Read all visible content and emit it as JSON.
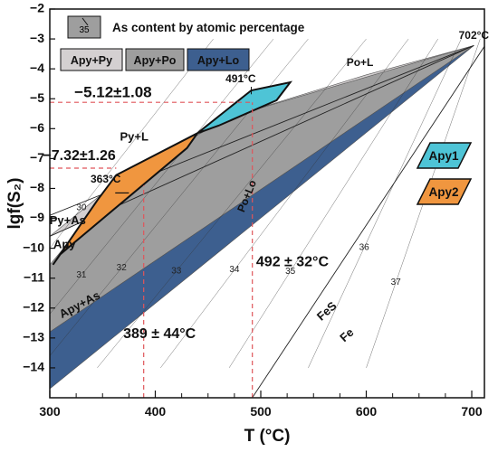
{
  "chart_data": {
    "type": "area",
    "xlabel": "T (°C)",
    "ylabel": "lgf(S₂)",
    "xlim": [
      300,
      712
    ],
    "ylim": [
      -15,
      -2
    ],
    "x_ticks": [
      300,
      400,
      500,
      600,
      700
    ],
    "y_ticks": [
      -2,
      -3,
      -4,
      -5,
      -6,
      -7,
      -8,
      -9,
      -10,
      -11,
      -12,
      -13,
      -14
    ],
    "x_minor_ticks": [
      325,
      350,
      375,
      425,
      450,
      475,
      525,
      550,
      575,
      625,
      650,
      675
    ],
    "phase_fields": [
      {
        "name": "Apy+Py",
        "color": "#d4d0d1",
        "polygon": [
          [
            300,
            -9.6
          ],
          [
            702,
            -3.22
          ],
          [
            600,
            -4.2
          ],
          [
            470,
            -5.62
          ],
          [
            370,
            -7.6
          ],
          [
            300,
            -9.6
          ]
        ]
      },
      {
        "name": "Apy+Po",
        "color": "#9e9e9e",
        "polygon": [
          [
            300,
            -10.55
          ],
          [
            300,
            -12.8
          ],
          [
            702,
            -3.22
          ],
          [
            470,
            -5.62
          ],
          [
            370,
            -7.6
          ],
          [
            300,
            -10.55
          ]
        ]
      },
      {
        "name": "Apy+Lo",
        "color": "#3d5f8f",
        "polygon": [
          [
            300,
            -12.8
          ],
          [
            300,
            -14.7
          ],
          [
            702,
            -3.22
          ]
        ]
      }
    ],
    "reaction_lines": [
      {
        "name": "Py+As / Apy",
        "points": [
          [
            300,
            -9.6
          ],
          [
            702,
            -3.22
          ]
        ]
      },
      {
        "name": "Po+L upper",
        "points": [
          [
            300,
            -8.9
          ],
          [
            702,
            -3.22
          ]
        ]
      },
      {
        "name": "FeS / Fe",
        "points": [
          [
            490,
            -15.1
          ],
          [
            712,
            -3.25
          ]
        ]
      }
    ],
    "isopleths": {
      "lines": [
        {
          "label": "30",
          "points": [
            [
              300,
              -10.0
            ],
            [
              455,
              -3.0
            ]
          ]
        },
        {
          "label": "31",
          "points": [
            [
              300,
              -12.2
            ],
            [
              512,
              -3.0
            ]
          ]
        },
        {
          "label": "32",
          "points": [
            [
              300,
              -13.6
            ],
            [
              545,
              -3.0
            ]
          ]
        },
        {
          "label": "33",
          "points": [
            [
              345,
              -14.0
            ],
            [
              600,
              -3.0
            ]
          ]
        },
        {
          "label": "34",
          "points": [
            [
              405,
              -14.0
            ],
            [
              640,
              -3.0
            ]
          ]
        },
        {
          "label": "35",
          "points": [
            [
              470,
              -14.0
            ],
            [
              668,
              -3.0
            ]
          ]
        },
        {
          "label": "36",
          "points": [
            [
              545,
              -14.0
            ],
            [
              690,
              -3.0
            ]
          ]
        },
        {
          "label": "37",
          "points": [
            [
              600,
              -14.0
            ],
            [
              708,
              -3.0
            ]
          ]
        }
      ]
    },
    "series": [
      {
        "name": "Apy1",
        "color": "#4ec4d6",
        "polygon": [
          [
            440,
            -6.15
          ],
          [
            465,
            -5.45
          ],
          [
            491,
            -4.72
          ],
          [
            528,
            -4.45
          ],
          [
            515,
            -5.05
          ],
          [
            460,
            -5.9
          ],
          [
            440,
            -6.15
          ]
        ]
      },
      {
        "name": "Apy2",
        "color": "#f0963f",
        "polygon": [
          [
            303,
            -10.55
          ],
          [
            345,
            -8.4
          ],
          [
            363,
            -7.55
          ],
          [
            440,
            -6.15
          ],
          [
            430,
            -6.65
          ],
          [
            310,
            -10.2
          ],
          [
            303,
            -10.55
          ]
        ]
      }
    ],
    "reference_lines": [
      {
        "orientation": "horizontal",
        "y": -5.12,
        "x_range": [
          300,
          491
        ],
        "style": "dashed",
        "color": "#e0555a"
      },
      {
        "orientation": "horizontal",
        "y": -7.32,
        "x_range": [
          300,
          363
        ],
        "style": "dashed",
        "color": "#e0555a"
      },
      {
        "orientation": "vertical",
        "x": 389,
        "y_range": [
          -15,
          -7.9
        ],
        "style": "dashed",
        "color": "#e0555a"
      },
      {
        "orientation": "vertical",
        "x": 492,
        "y_range": [
          -15,
          -5.12
        ],
        "style": "dashed",
        "color": "#e0555a"
      }
    ],
    "legend": {
      "placement": "top-left",
      "isopleth_sample": "35",
      "isopleth_text": "As content by atomic percentage",
      "entries": [
        {
          "name": "Apy+Py",
          "color": "#d4d0d1"
        },
        {
          "name": "Apy+Po",
          "color": "#9e9e9e"
        },
        {
          "name": "Apy+Lo",
          "color": "#3d5f8f"
        }
      ]
    },
    "sample_legend": [
      {
        "name": "Apy1",
        "color": "#4ec4d6"
      },
      {
        "name": "Apy2",
        "color": "#f0963f"
      }
    ],
    "annotations": [
      {
        "text": "702°C",
        "x": 702,
        "y": -3.0,
        "size": 12
      },
      {
        "text": "491°C",
        "x": 481,
        "y": -4.45,
        "size": 12
      },
      {
        "text": "363°C",
        "x": 353,
        "y": -7.8,
        "size": 12
      },
      {
        "text": "−5.12±1.08",
        "x": 360,
        "y": -4.95,
        "size": 17
      },
      {
        "text": "−7.32±1.26",
        "x": 328,
        "y": -7.05,
        "size": 16
      },
      {
        "text": "492 ± 32°C",
        "x": 530,
        "y": -10.6,
        "size": 16
      },
      {
        "text": "389 ± 44°C",
        "x": 404,
        "y": -13.0,
        "size": 16
      },
      {
        "text": "Po+L",
        "x": 594,
        "y": -3.9,
        "size": 12
      },
      {
        "text": "Py+L",
        "x": 380,
        "y": -6.4,
        "size": 13
      },
      {
        "text": "Py+As",
        "x": 317,
        "y": -9.2,
        "size": 13
      },
      {
        "text": "Apy",
        "x": 314,
        "y": -10.0,
        "size": 13
      },
      {
        "text": "Po+Lo",
        "x": 490,
        "y": -8.3,
        "size": 12,
        "rotate": -68
      },
      {
        "text": "Apy+As",
        "x": 330,
        "y": -12.0,
        "size": 13,
        "rotate": -28
      },
      {
        "text": "FeS",
        "x": 565,
        "y": -12.2,
        "size": 13,
        "rotate": -42
      },
      {
        "text": "Fe",
        "x": 584,
        "y": -13.0,
        "size": 13,
        "rotate": -42
      }
    ]
  }
}
